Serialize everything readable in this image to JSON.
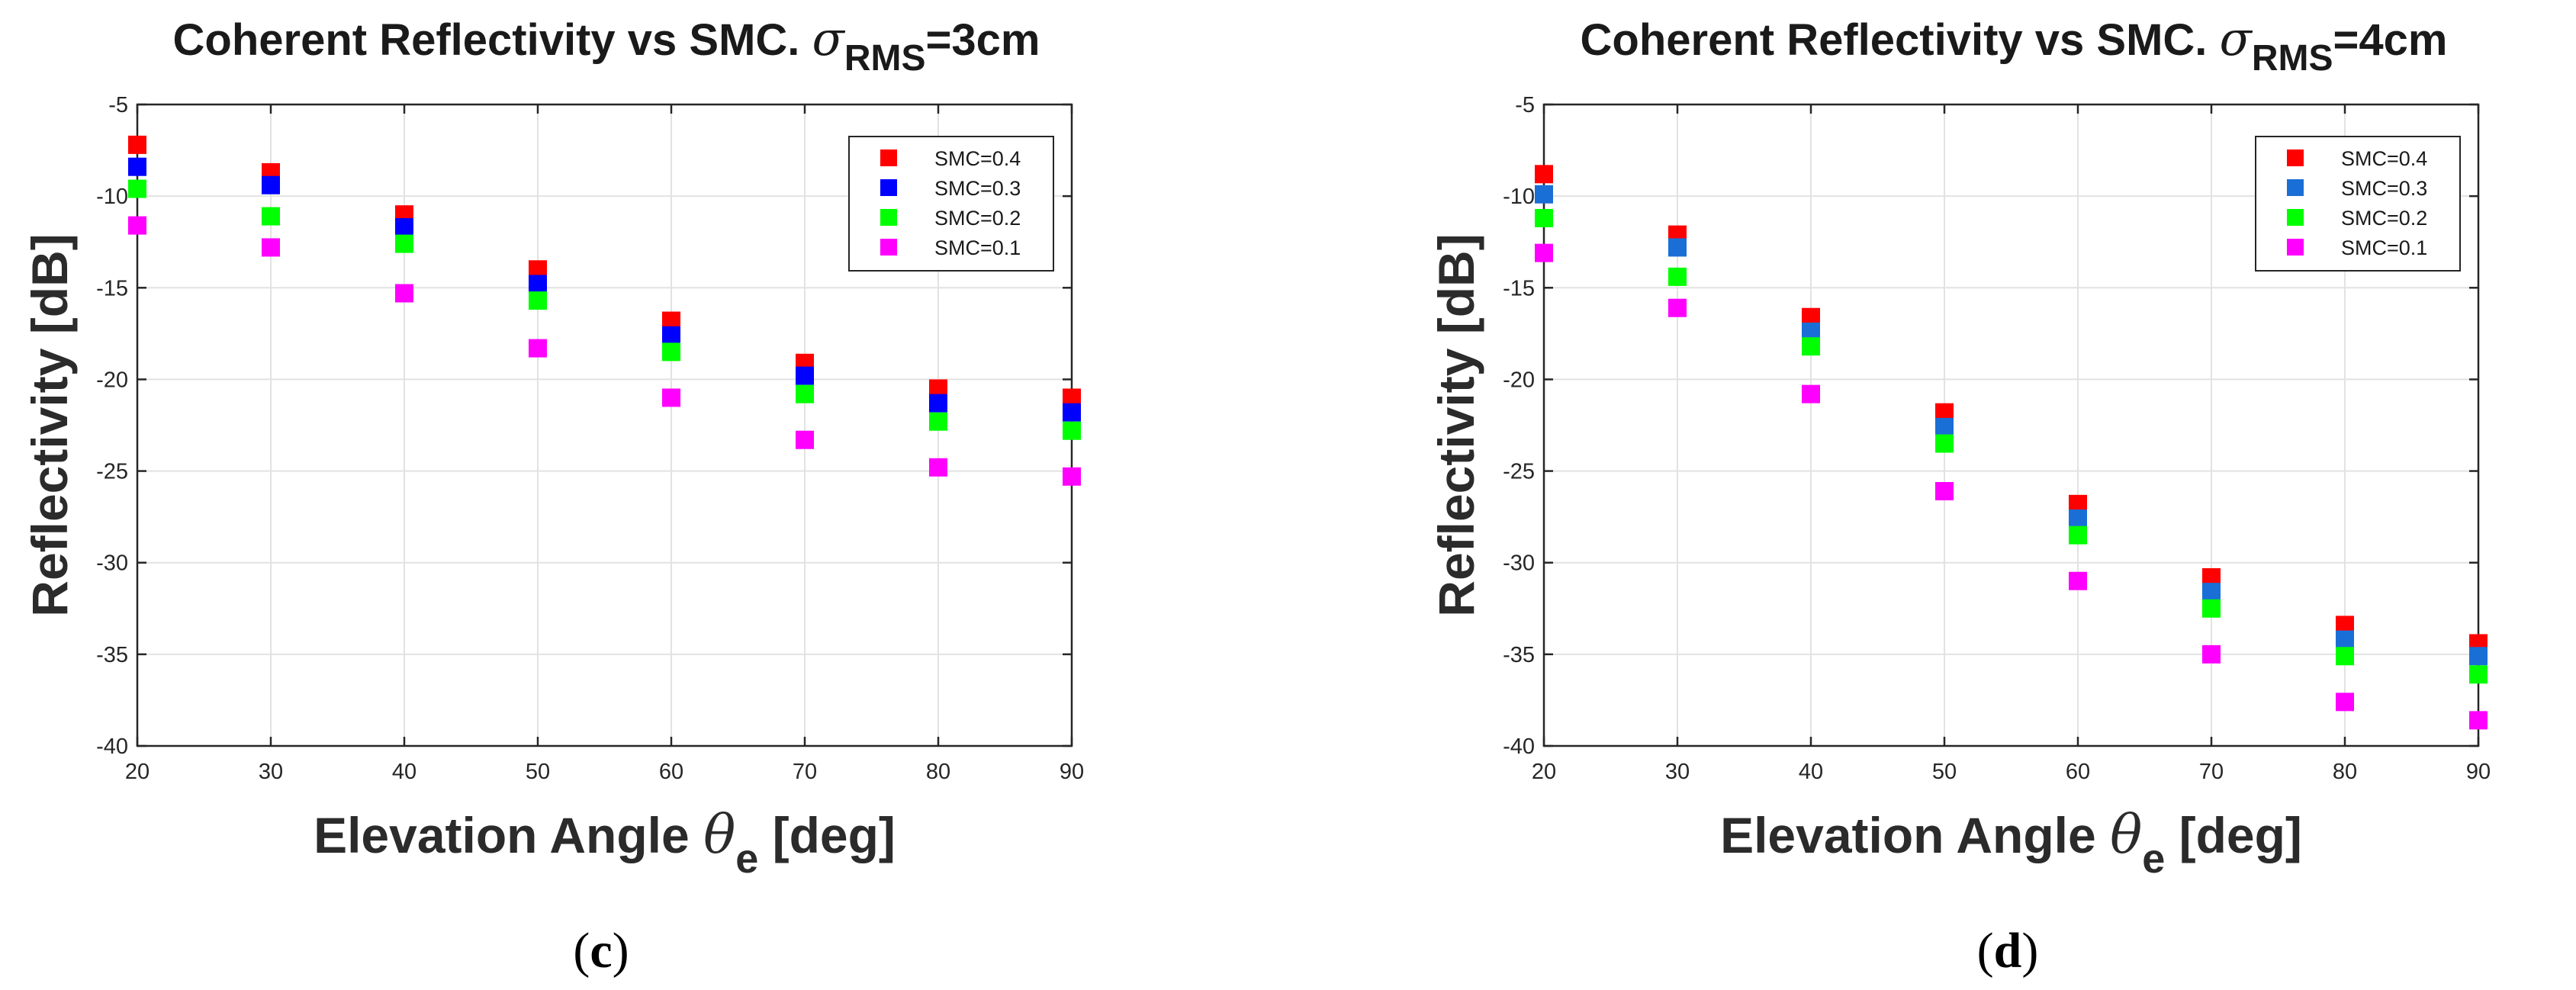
{
  "chart_data": [
    {
      "type": "scatter",
      "panel": "(c)",
      "title": "Coherent Reflectivity vs SMC.",
      "title_symbol": "σ",
      "title_subscript": "RMS",
      "title_suffix": "=3cm",
      "xlabel": "Elevation Angle",
      "xlabel_symbol": "θ",
      "xlabel_subscript": "e",
      "xlabel_suffix": "[deg]",
      "ylabel": "Reflectivity [dB]",
      "xlim": [
        20,
        90
      ],
      "ylim": [
        -40,
        -5
      ],
      "xticks": [
        20,
        30,
        40,
        50,
        60,
        70,
        80,
        90
      ],
      "yticks": [
        -5,
        -10,
        -15,
        -20,
        -25,
        -30,
        -35,
        -40
      ],
      "grid": true,
      "legend_position": "top-right",
      "x": [
        20,
        30,
        40,
        50,
        60,
        70,
        80,
        90
      ],
      "series": [
        {
          "name": "SMC=0.4",
          "color": "#ff0000",
          "values": [
            -7.2,
            -8.7,
            -11.0,
            -14.0,
            -16.8,
            -19.1,
            -20.5,
            -21.0
          ]
        },
        {
          "name": "SMC=0.3",
          "color": "#0000ff",
          "values": [
            -8.4,
            -9.4,
            -11.7,
            -14.8,
            -17.6,
            -19.8,
            -21.3,
            -21.8
          ]
        },
        {
          "name": "SMC=0.2",
          "color": "#00ff00",
          "values": [
            -9.6,
            -11.1,
            -12.6,
            -15.7,
            -18.5,
            -20.8,
            -22.3,
            -22.8
          ]
        },
        {
          "name": "SMC=0.1",
          "color": "#ff00ff",
          "values": [
            -11.6,
            -12.8,
            -15.3,
            -18.3,
            -21.0,
            -23.3,
            -24.8,
            -25.3
          ]
        }
      ]
    },
    {
      "type": "scatter",
      "panel": "(d)",
      "title": "Coherent Reflectivity vs SMC.",
      "title_symbol": "σ",
      "title_subscript": "RMS",
      "title_suffix": "=4cm",
      "xlabel": "Elevation Angle",
      "xlabel_symbol": "θ",
      "xlabel_subscript": "e",
      "xlabel_suffix": "[deg]",
      "ylabel": "Reflectivity [dB]",
      "xlim": [
        20,
        90
      ],
      "ylim": [
        -40,
        -5
      ],
      "xticks": [
        20,
        30,
        40,
        50,
        60,
        70,
        80,
        90
      ],
      "yticks": [
        -5,
        -10,
        -15,
        -20,
        -25,
        -30,
        -35,
        -40
      ],
      "grid": true,
      "legend_position": "top-right",
      "x": [
        20,
        30,
        40,
        50,
        60,
        70,
        80,
        90
      ],
      "series": [
        {
          "name": "SMC=0.4",
          "color": "#ff0000",
          "values": [
            -8.8,
            -12.1,
            -16.6,
            -21.8,
            -26.8,
            -30.8,
            -33.4,
            -34.4
          ]
        },
        {
          "name": "SMC=0.3",
          "color": "#1a6fd6",
          "values": [
            -9.9,
            -12.8,
            -17.4,
            -22.6,
            -27.6,
            -31.6,
            -34.2,
            -35.1
          ]
        },
        {
          "name": "SMC=0.2",
          "color": "#00ff00",
          "values": [
            -11.2,
            -14.4,
            -18.2,
            -23.5,
            -28.5,
            -32.5,
            -35.1,
            -36.1
          ]
        },
        {
          "name": "SMC=0.1",
          "color": "#ff00ff",
          "values": [
            -13.1,
            -16.1,
            -20.8,
            -26.1,
            -31.0,
            -35.0,
            -37.6,
            -38.6
          ]
        }
      ]
    }
  ]
}
